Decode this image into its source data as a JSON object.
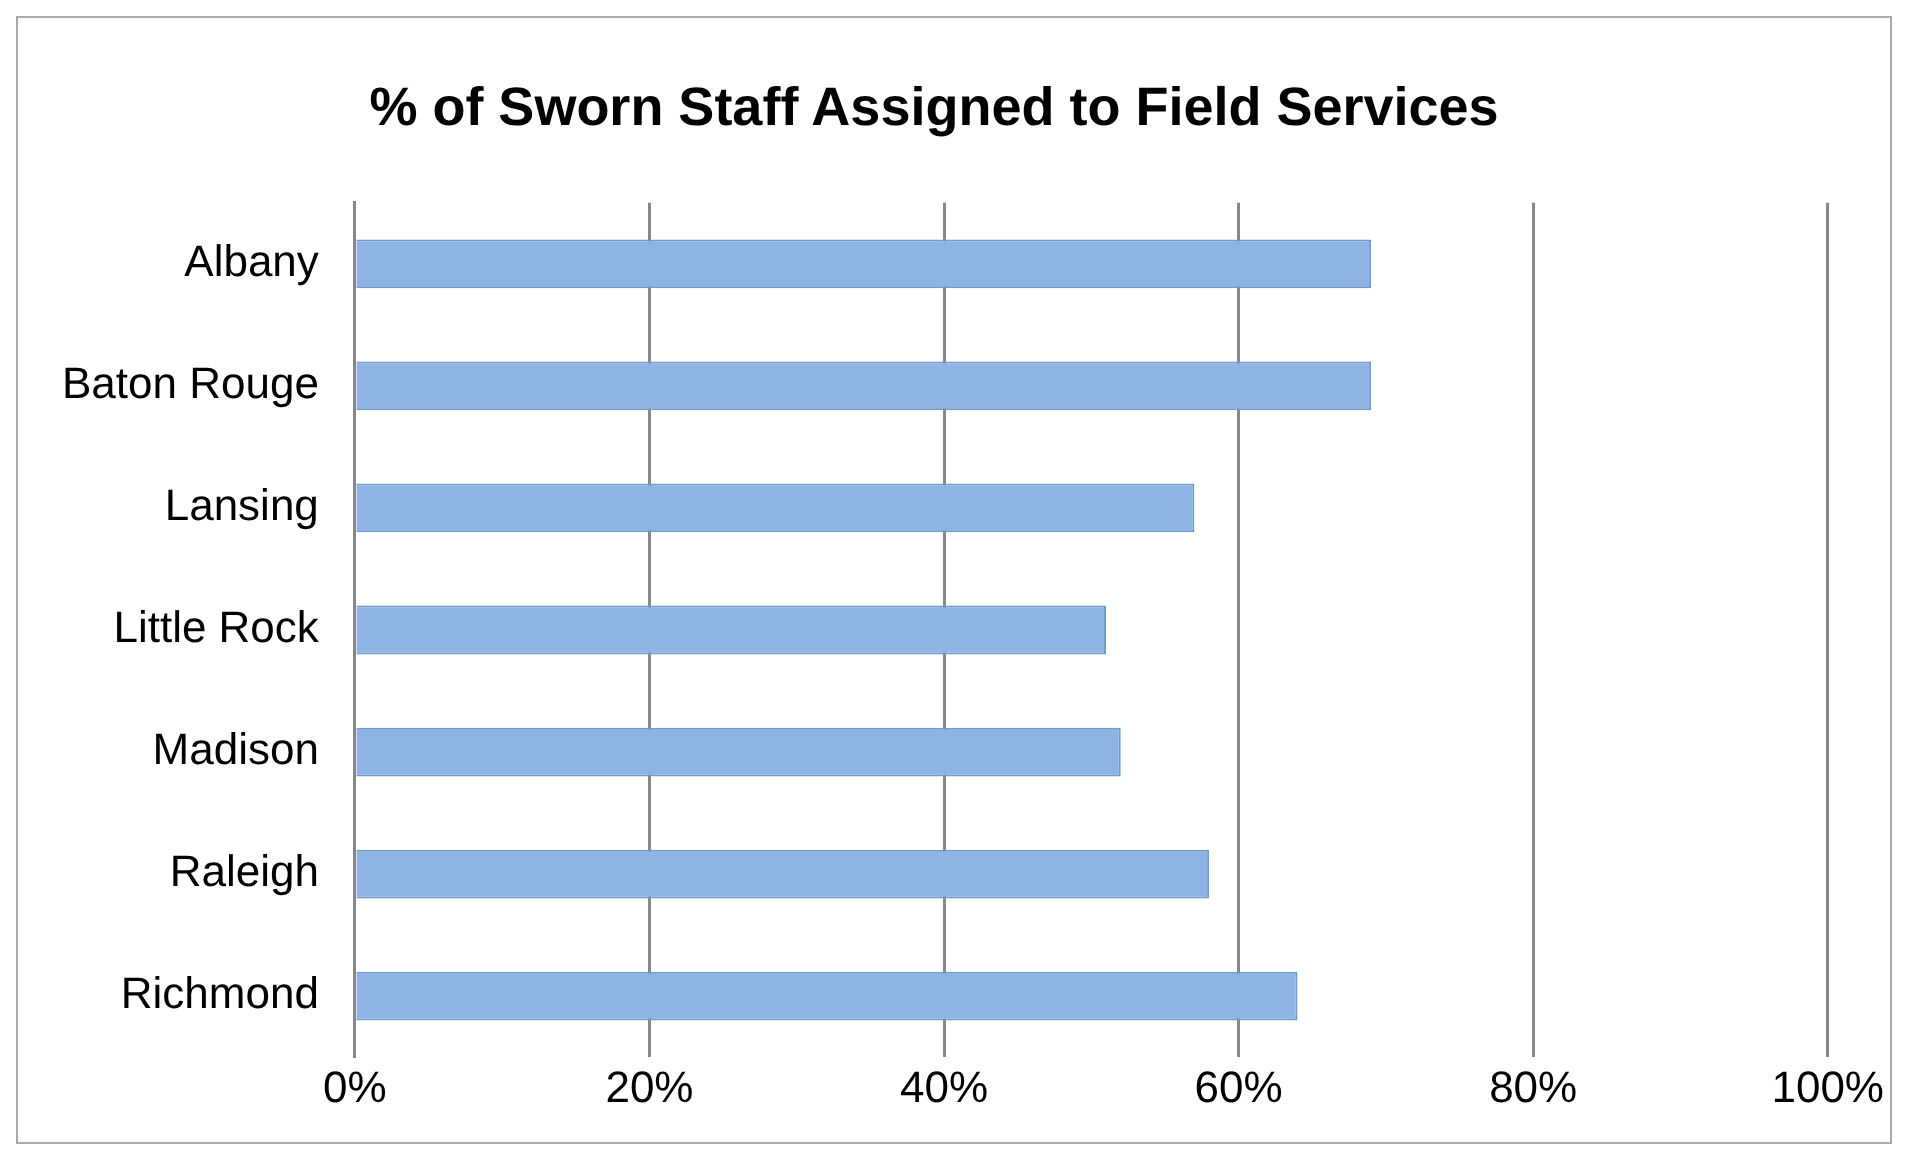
{
  "chart_data": {
    "type": "bar",
    "orientation": "horizontal",
    "title": "% of Sworn Staff Assigned to Field Services",
    "categories": [
      "Albany",
      "Baton Rouge",
      "Lansing",
      "Little Rock",
      "Madison",
      "Raleigh",
      "Richmond"
    ],
    "values": [
      69,
      69,
      57,
      51,
      52,
      58,
      64
    ],
    "color": "#8db4e2",
    "xlim": [
      0,
      100
    ],
    "xticks": [
      {
        "value": 0,
        "label": "0%"
      },
      {
        "value": 20,
        "label": "20%"
      },
      {
        "value": 40,
        "label": "40%"
      },
      {
        "value": 60,
        "label": "60%"
      },
      {
        "value": 80,
        "label": "80%"
      },
      {
        "value": 100,
        "label": "100%"
      }
    ],
    "grid": "x",
    "legend": false
  }
}
